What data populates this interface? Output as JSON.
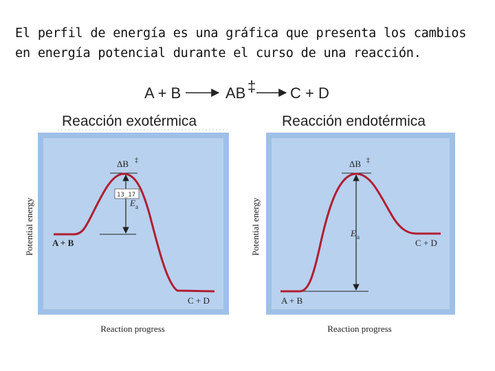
{
  "intro": {
    "line1": "El perfil de energía es una gráfica que presenta los cambios",
    "line2": "en energía potencial durante el curso de una reacción."
  },
  "equation": {
    "reactants": "A + B",
    "complex": "AB",
    "complex_sup": "‡",
    "products": "C + D"
  },
  "panels": [
    {
      "title": "Reacción exotérmica",
      "y_label": "Potential energy",
      "x_label": "Reaction progress",
      "peak_label": "ΔB",
      "peak_sup": "‡",
      "ea_label": "E",
      "ea_sub": "a",
      "reactants_label": "A + B",
      "products_label": "C + D",
      "sticker": "13_17"
    },
    {
      "title": "Reacción endotérmica",
      "y_label": "Potential energy",
      "x_label": "Reaction progress",
      "peak_label": "ΔB",
      "peak_sup": "‡",
      "ea_label": "E",
      "ea_sub": "a",
      "reactants_label": "A + B",
      "products_label": "C + D"
    }
  ],
  "colors": {
    "panel_bg": "#9fc0e6",
    "panel_inner": "#b8d1ee",
    "curve": "#b01e32"
  }
}
